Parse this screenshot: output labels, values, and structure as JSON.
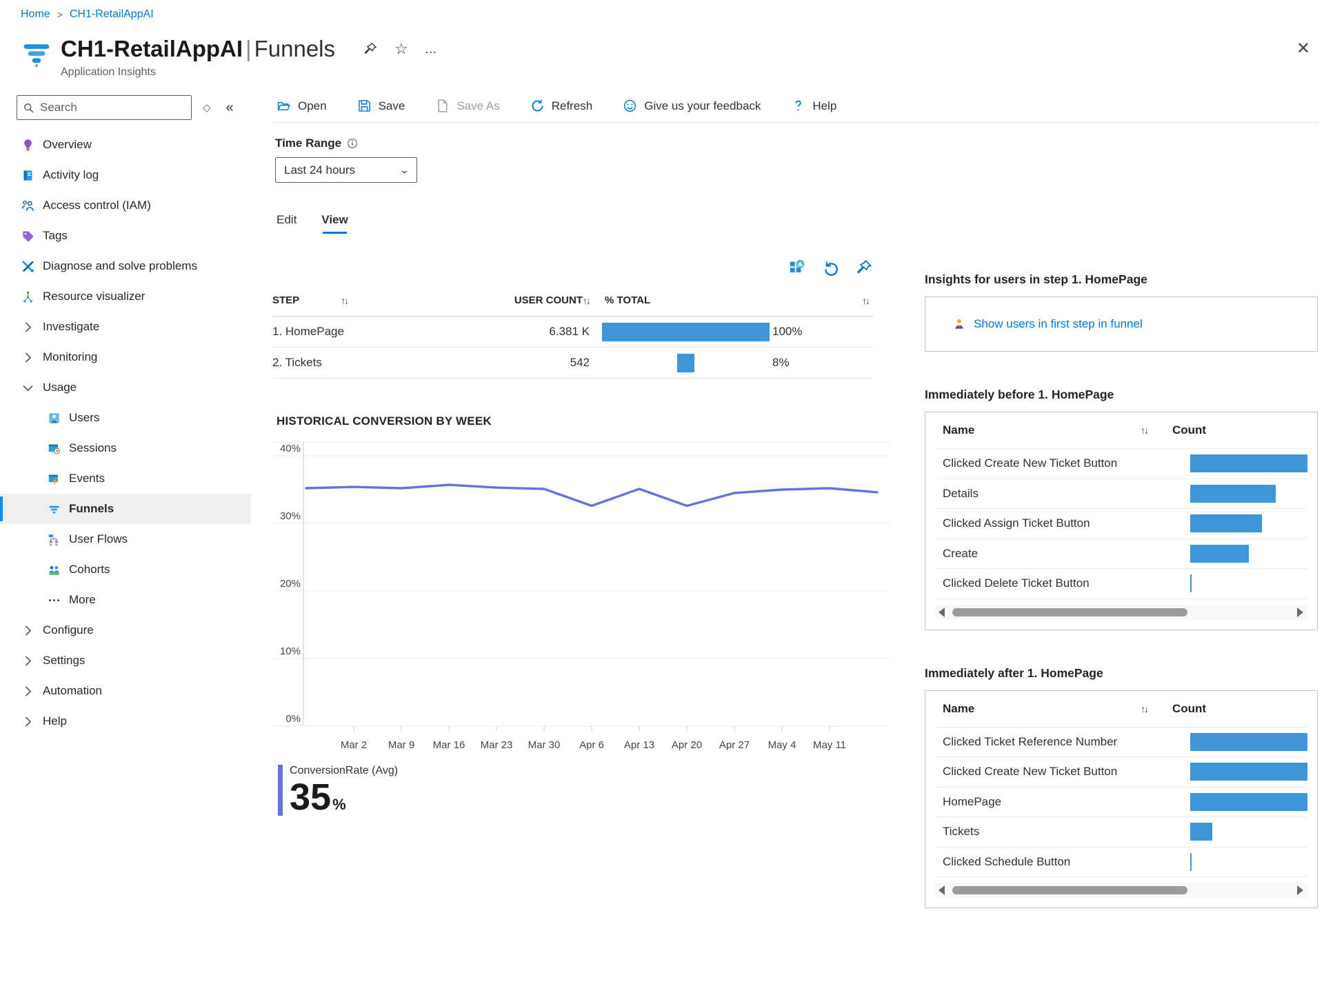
{
  "colors": {
    "accent": "#0078d4",
    "funnel_bar": "#3e96d9",
    "line": "#6373e0",
    "selected_nav": "#efefef"
  },
  "breadcrumb": {
    "home": "Home",
    "separator": ">",
    "current": "CH1-RetailAppAI"
  },
  "header": {
    "title": "CH1-RetailAppAI",
    "separator": "|",
    "page": "Funnels",
    "subtitle": "Application Insights",
    "star_glyph": "☆",
    "ellipsis_glyph": "…",
    "close_glyph": "✕",
    "collapse_glyph": "«",
    "diamond_glyph": "◇"
  },
  "sidebar": {
    "search_placeholder": "Search",
    "items": [
      {
        "label": "Overview",
        "icon": "overview-icon",
        "indent": false
      },
      {
        "label": "Activity log",
        "icon": "activity-log-icon",
        "indent": false
      },
      {
        "label": "Access control (IAM)",
        "icon": "access-control-icon",
        "indent": false
      },
      {
        "label": "Tags",
        "icon": "tags-icon",
        "indent": false
      },
      {
        "label": "Diagnose and solve problems",
        "icon": "diagnose-icon",
        "indent": false
      },
      {
        "label": "Resource visualizer",
        "icon": "resource-visualizer-icon",
        "indent": false
      },
      {
        "label": "Investigate",
        "icon": "chevron-right-icon",
        "indent": false
      },
      {
        "label": "Monitoring",
        "icon": "chevron-right-icon",
        "indent": false
      },
      {
        "label": "Usage",
        "icon": "chevron-down-icon",
        "indent": false
      },
      {
        "label": "Users",
        "icon": "users-icon",
        "indent": true
      },
      {
        "label": "Sessions",
        "icon": "sessions-icon",
        "indent": true
      },
      {
        "label": "Events",
        "icon": "events-icon",
        "indent": true
      },
      {
        "label": "Funnels",
        "icon": "funnels-icon",
        "indent": true,
        "selected": true
      },
      {
        "label": "User Flows",
        "icon": "user-flows-icon",
        "indent": true
      },
      {
        "label": "Cohorts",
        "icon": "cohorts-icon",
        "indent": true
      },
      {
        "label": "More",
        "icon": "more-icon",
        "indent": true
      },
      {
        "label": "Configure",
        "icon": "chevron-right-icon",
        "indent": false
      },
      {
        "label": "Settings",
        "icon": "chevron-right-icon",
        "indent": false
      },
      {
        "label": "Automation",
        "icon": "chevron-right-icon",
        "indent": false
      },
      {
        "label": "Help",
        "icon": "chevron-right-icon",
        "indent": false
      }
    ]
  },
  "toolbar": {
    "items": [
      {
        "label": "Open",
        "icon": "open-icon",
        "disabled": false
      },
      {
        "label": "Save",
        "icon": "save-icon",
        "disabled": false
      },
      {
        "label": "Save As",
        "icon": "save-as-icon",
        "disabled": true
      },
      {
        "label": "Refresh",
        "icon": "refresh-icon",
        "disabled": false
      },
      {
        "label": "Give us your feedback",
        "icon": "feedback-icon",
        "disabled": false
      },
      {
        "label": "Help",
        "icon": "help-icon",
        "disabled": false
      }
    ]
  },
  "time_range": {
    "label": "Time Range",
    "value": "Last 24 hours"
  },
  "tabs": {
    "items": [
      {
        "label": "Edit",
        "active": false
      },
      {
        "label": "View",
        "active": true
      }
    ]
  },
  "sort_glyph": "↑↓",
  "funnel_table": {
    "columns": {
      "step": "STEP",
      "user_count": "USER COUNT",
      "total": "% TOTAL"
    },
    "rows": [
      {
        "step": "1. HomePage",
        "user_count": "6.381 K",
        "pct_label": "100%",
        "bar_pct": 100
      },
      {
        "step": "2. Tickets",
        "user_count": "542",
        "pct_label": "8%",
        "bar_pct": 10
      }
    ]
  },
  "chart_data": {
    "type": "line",
    "title": "HISTORICAL CONVERSION BY WEEK",
    "ylim": [
      0,
      40
    ],
    "yticks": [
      "40%",
      "30%",
      "20%",
      "10%",
      "0%"
    ],
    "xticks": [
      "Mar 2",
      "Mar 9",
      "Mar 16",
      "Mar 23",
      "Mar 30",
      "Apr 6",
      "Apr 13",
      "Apr 20",
      "Apr 27",
      "May 4",
      "May 11"
    ],
    "first_tick_point_index": 1,
    "grid": true,
    "legend_position": "bottom-left",
    "series": [
      {
        "name": "ConversionRate (Avg)",
        "color": "#6373e0",
        "values": [
          35.2,
          35.4,
          35.2,
          35.7,
          35.3,
          35.1,
          32.6,
          35.1,
          32.6,
          34.5,
          35.0,
          35.2,
          34.6
        ]
      }
    ],
    "average_label": {
      "name": "ConversionRate (Avg)",
      "value": "35",
      "unit": "%"
    }
  },
  "insights": {
    "heading": "Insights for users in step 1. HomePage",
    "link": "Show users in first step in funnel"
  },
  "before_table": {
    "heading": "Immediately before 1. HomePage",
    "columns": {
      "name": "Name",
      "count": "Count"
    },
    "rows": [
      {
        "name": "Clicked Create New Ticket Button",
        "bar_pct": 100
      },
      {
        "name": "Details",
        "bar_pct": 73
      },
      {
        "name": "Clicked Assign Ticket Button",
        "bar_pct": 61
      },
      {
        "name": "Create",
        "bar_pct": 50
      },
      {
        "name": "Clicked Delete Ticket Button",
        "bar_pct": 1.2
      }
    ]
  },
  "after_table": {
    "heading": "Immediately after 1. HomePage",
    "columns": {
      "name": "Name",
      "count": "Count"
    },
    "rows": [
      {
        "name": "Clicked Ticket Reference Number",
        "bar_pct": 100
      },
      {
        "name": "Clicked Create New Ticket Button",
        "bar_pct": 100
      },
      {
        "name": "HomePage",
        "bar_pct": 100
      },
      {
        "name": "Tickets",
        "bar_pct": 19
      },
      {
        "name": "Clicked Schedule Button",
        "bar_pct": 1.2
      }
    ]
  }
}
